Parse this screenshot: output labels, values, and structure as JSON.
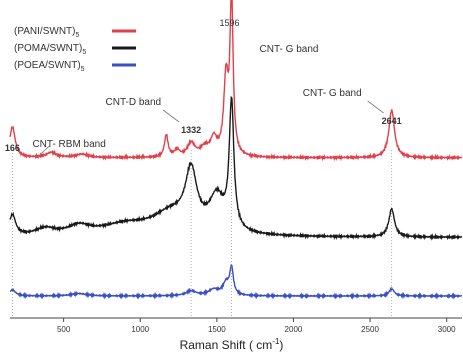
{
  "chart_data": {
    "type": "line",
    "title": "",
    "xlabel": "Raman Shift ( cm",
    "xlabel_sup": "-1",
    "xlabel_close": ")",
    "ylabel": "",
    "xlim": [
      150,
      3100
    ],
    "xticks": [
      500,
      1000,
      1500,
      2000,
      2500,
      3000
    ],
    "grid": false,
    "legend": {
      "placement": "top-left",
      "entries": [
        {
          "name": "(PANI/SWNT)",
          "sub": "5",
          "color": "#e0404a"
        },
        {
          "name": "(POMA/SWNT)",
          "sub": "5",
          "color": "#1a1a1a"
        },
        {
          "name": "(POEA/SWNT)",
          "sub": "5",
          "color": "#3a4fc4"
        }
      ]
    },
    "series": [
      {
        "name": "(PANI/SWNT)5",
        "color": "#e0404a",
        "baseline": 0.06,
        "peaks": [
          [
            166,
            0.18,
            22
          ],
          [
            420,
            0.03,
            40
          ],
          [
            620,
            0.02,
            50
          ],
          [
            1170,
            0.13,
            14
          ],
          [
            1240,
            0.04,
            20
          ],
          [
            1332,
            0.08,
            30
          ],
          [
            1420,
            0.05,
            35
          ],
          [
            1480,
            0.1,
            25
          ],
          [
            1560,
            0.45,
            18
          ],
          [
            1596,
            0.92,
            12
          ],
          [
            2641,
            0.28,
            22
          ]
        ]
      },
      {
        "name": "(POMA/SWNT)5",
        "color": "#1a1a1a",
        "baseline": 0.14,
        "peaks": [
          [
            166,
            0.12,
            25
          ],
          [
            380,
            0.04,
            80
          ],
          [
            600,
            0.05,
            90
          ],
          [
            900,
            0.06,
            200
          ],
          [
            1200,
            0.12,
            150
          ],
          [
            1332,
            0.32,
            45
          ],
          [
            1500,
            0.2,
            60
          ],
          [
            1596,
            0.72,
            18
          ],
          [
            2641,
            0.16,
            22
          ]
        ]
      },
      {
        "name": "(POEA/SWNT)5",
        "color": "#3a4fc4",
        "baseline": 0.05,
        "peaks": [
          [
            166,
            0.05,
            25
          ],
          [
            600,
            0.02,
            60
          ],
          [
            1332,
            0.04,
            40
          ],
          [
            1480,
            0.05,
            40
          ],
          [
            1560,
            0.1,
            25
          ],
          [
            1596,
            0.22,
            14
          ],
          [
            2641,
            0.06,
            20
          ]
        ]
      }
    ],
    "annotations": [
      {
        "text": "166",
        "x": 166,
        "bold": true
      },
      {
        "text": "CNT- RBM band",
        "x": 166
      },
      {
        "text": "CNT-D band",
        "x": 1332
      },
      {
        "text": "1332",
        "x": 1332,
        "bold": true
      },
      {
        "text": "1596",
        "x": 1596
      },
      {
        "text": "CNT- G band",
        "x": 1596
      },
      {
        "text": "CNT- G  band",
        "x": 2641
      },
      {
        "text": "2641",
        "x": 2641,
        "bold": true
      }
    ]
  }
}
